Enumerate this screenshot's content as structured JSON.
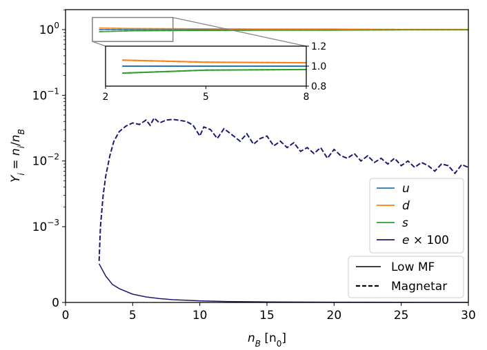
{
  "chart_data": {
    "type": "line",
    "xlabel": "n_B [n_0]",
    "ylabel": "Y_i = n_i/n_B",
    "xlim": [
      0,
      30
    ],
    "ylim": [
      0,
      2
    ],
    "yscale": "symlog",
    "linthresh": 0.0003,
    "x_ticks": [
      "0",
      "5",
      "10",
      "15",
      "20",
      "25",
      "30"
    ],
    "x_tick_values": [
      0,
      5,
      10,
      15,
      20,
      25,
      30
    ],
    "y_ticks": [
      {
        "value": 0,
        "base": "0",
        "exp": ""
      },
      {
        "value": 0.001,
        "base": "10",
        "exp": "−3"
      },
      {
        "value": 0.01,
        "base": "10",
        "exp": "−2"
      },
      {
        "value": 0.1,
        "base": "10",
        "exp": "−1"
      },
      {
        "value": 1,
        "base": "10",
        "exp": "0"
      }
    ],
    "series": [
      {
        "name": "u",
        "color": "#1f77b4",
        "x": [
          2.5,
          5,
          10,
          15,
          20,
          25,
          30
        ],
        "y_lowmf": [
          1.0,
          1.0,
          1.0,
          1.0,
          1.0,
          1.0,
          1.0
        ],
        "y_magnetar": [
          1.0,
          1.0,
          1.0,
          1.0,
          1.0,
          1.0,
          1.0
        ]
      },
      {
        "name": "d",
        "color": "#ff7f0e",
        "x": [
          2.5,
          5,
          10,
          15,
          20,
          25,
          30
        ],
        "y_lowmf": [
          1.06,
          1.04,
          1.03,
          1.02,
          1.02,
          1.01,
          1.01
        ],
        "y_magnetar": [
          1.06,
          1.04,
          1.03,
          1.02,
          1.02,
          1.01,
          1.01
        ]
      },
      {
        "name": "s",
        "color": "#2ca02c",
        "x": [
          2.5,
          5,
          10,
          15,
          20,
          25,
          30
        ],
        "y_lowmf": [
          0.93,
          0.96,
          0.97,
          0.98,
          0.98,
          0.99,
          0.99
        ],
        "y_magnetar": [
          0.93,
          0.96,
          0.97,
          0.98,
          0.98,
          0.99,
          0.99
        ]
      },
      {
        "name": "e × 100",
        "color": "#191970",
        "x_lowmf": [
          2.5,
          3,
          3.5,
          4,
          5,
          6,
          7,
          8,
          10,
          12,
          15,
          20,
          25,
          30
        ],
        "y_lowmf": [
          0.00028,
          0.00019,
          0.00013,
          0.0001,
          6e-05,
          4e-05,
          2.8e-05,
          2e-05,
          1.2e-05,
          7e-06,
          4e-06,
          2e-06,
          1e-06,
          8e-07
        ],
        "x_magnetar": [
          2.5,
          2.6,
          2.8,
          3.0,
          3.3,
          3.6,
          4.0,
          4.5,
          5.0,
          5.5,
          6.0,
          6.3,
          6.6,
          7.0,
          7.5,
          8.0,
          9.0,
          9.5,
          10.0,
          10.3,
          10.8,
          11.3,
          11.8,
          12.3,
          13.0,
          13.5,
          14.0,
          14.5,
          15.0,
          15.5,
          16.0,
          16.5,
          17.0,
          17.5,
          18.0,
          18.5,
          19.0,
          19.5,
          20.0,
          20.5,
          21.0,
          21.5,
          22.0,
          22.5,
          23.0,
          23.5,
          24.0,
          24.5,
          25.0,
          25.5,
          26.0,
          26.5,
          27.0,
          27.5,
          28.0,
          28.5,
          29.0,
          29.5,
          30.0
        ],
        "y_magnetar": [
          0.0003,
          0.001,
          0.003,
          0.006,
          0.012,
          0.02,
          0.028,
          0.034,
          0.038,
          0.036,
          0.042,
          0.035,
          0.045,
          0.038,
          0.042,
          0.043,
          0.04,
          0.035,
          0.024,
          0.033,
          0.03,
          0.022,
          0.031,
          0.026,
          0.02,
          0.026,
          0.018,
          0.022,
          0.024,
          0.017,
          0.02,
          0.016,
          0.019,
          0.014,
          0.016,
          0.013,
          0.016,
          0.011,
          0.015,
          0.012,
          0.011,
          0.013,
          0.01,
          0.012,
          0.0095,
          0.011,
          0.009,
          0.011,
          0.0085,
          0.01,
          0.008,
          0.0095,
          0.0085,
          0.007,
          0.009,
          0.0085,
          0.0065,
          0.0088,
          0.008
        ]
      }
    ],
    "legend": {
      "placement": "lower-right",
      "species": [
        {
          "label_base": "u",
          "label_extra": "",
          "color": "#1f77b4"
        },
        {
          "label_base": "d",
          "label_extra": "",
          "color": "#ff7f0e"
        },
        {
          "label_base": "s",
          "label_extra": "",
          "color": "#2ca02c"
        },
        {
          "label_base": "e",
          "label_extra": " × 100",
          "color": "#191970"
        }
      ],
      "styles": [
        {
          "label": "Low MF",
          "dash": "solid"
        },
        {
          "label": "Magnetar",
          "dash": "dashed"
        }
      ]
    },
    "inset": {
      "xlim": [
        2,
        8
      ],
      "ylim": [
        0.8,
        1.2
      ],
      "x_ticks": [
        "2",
        "5",
        "8"
      ],
      "x_tick_values": [
        2,
        5,
        8
      ],
      "y_ticks": [
        "0.8",
        "1.0",
        "1.2"
      ],
      "y_tick_values": [
        0.8,
        1.0,
        1.2
      ]
    }
  }
}
